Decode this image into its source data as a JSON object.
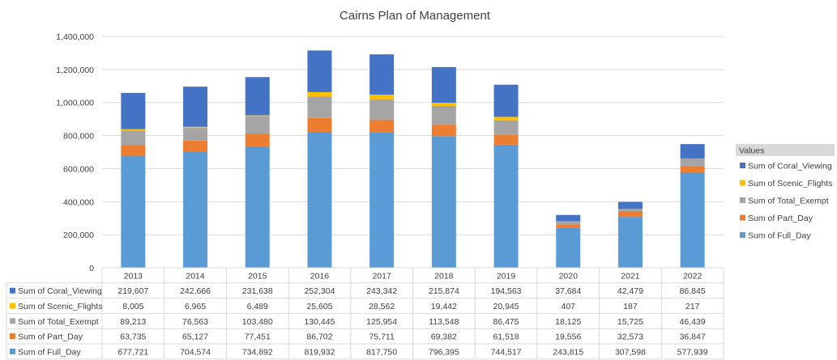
{
  "chart_data": {
    "type": "bar",
    "stacked": true,
    "title": "Cairns Plan of Management",
    "categories": [
      "2013",
      "2014",
      "2015",
      "2016",
      "2017",
      "2018",
      "2019",
      "2020",
      "2021",
      "2022"
    ],
    "ylim": [
      0,
      1400000
    ],
    "yticks": [
      "0",
      "200,000",
      "400,000",
      "600,000",
      "800,000",
      "1,000,000",
      "1,200,000",
      "1,400,000"
    ],
    "grid": true,
    "legend_title": "Values",
    "legend_position": "right",
    "series": [
      {
        "name": "Sum of Full_Day",
        "color": "#5B9BD5",
        "values": [
          677721,
          704574,
          734892,
          819932,
          817750,
          796395,
          744517,
          243815,
          307598,
          577939
        ],
        "labels": [
          "677,721",
          "704,574",
          "734,892",
          "819,932",
          "817,750",
          "796,395",
          "744,517",
          "243,815",
          "307,598",
          "577,939"
        ]
      },
      {
        "name": "Sum of Part_Day",
        "color": "#ED7D31",
        "values": [
          63735,
          65127,
          77451,
          86702,
          75711,
          69382,
          61518,
          19556,
          32573,
          36847
        ],
        "labels": [
          "63,735",
          "65,127",
          "77,451",
          "86,702",
          "75,711",
          "69,382",
          "61,518",
          "19,556",
          "32,573",
          "36,847"
        ]
      },
      {
        "name": "Sum of Total_Exempt",
        "color": "#A5A5A5",
        "values": [
          89213,
          76563,
          103480,
          130445,
          125954,
          113548,
          86475,
          18125,
          15725,
          46439
        ],
        "labels": [
          "89,213",
          "76,563",
          "103,480",
          "130,445",
          "125,954",
          "113,548",
          "86,475",
          "18,125",
          "15,725",
          "46,439"
        ]
      },
      {
        "name": "Sum of Scenic_Flights",
        "color": "#FFC000",
        "values": [
          8005,
          6965,
          6489,
          25605,
          28562,
          19442,
          20945,
          407,
          187,
          217
        ],
        "labels": [
          "8,005",
          "6,965",
          "6,489",
          "25,605",
          "28,562",
          "19,442",
          "20,945",
          "407",
          "187",
          "217"
        ]
      },
      {
        "name": "Sum of Coral_Viewing",
        "color": "#4472C4",
        "values": [
          219607,
          242666,
          231638,
          252304,
          243342,
          215874,
          194563,
          37684,
          42479,
          86845
        ],
        "labels": [
          "219,607",
          "242,666",
          "231,638",
          "252,304",
          "243,342",
          "215,874",
          "194,563",
          "37,684",
          "42,479",
          "86,845"
        ]
      }
    ],
    "table_row_order": [
      "Sum of Coral_Viewing",
      "Sum of Scenic_Flights",
      "Sum of Total_Exempt",
      "Sum of Part_Day",
      "Sum of Full_Day"
    ],
    "legend_order": [
      "Sum of Coral_Viewing",
      "Sum of Scenic_Flights",
      "Sum of Total_Exempt",
      "Sum of Part_Day",
      "Sum of Full_Day"
    ]
  }
}
